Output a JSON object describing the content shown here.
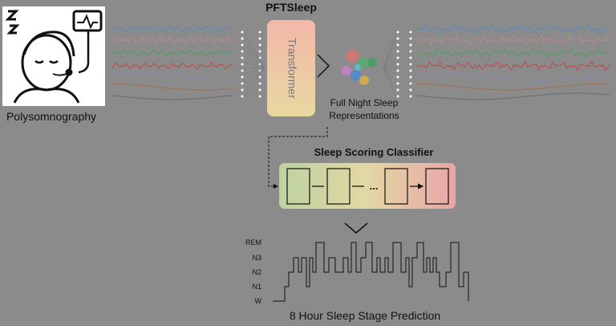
{
  "header": {
    "title": "PFTSleep"
  },
  "input": {
    "label": "Polysomnography"
  },
  "model": {
    "label": "Transformer"
  },
  "representations": {
    "label_lines": [
      "Full Night Sleep",
      "Representations"
    ]
  },
  "classifier": {
    "title": "Sleep Scoring Classifier",
    "ellipsis": "..."
  },
  "prediction": {
    "title": "8 Hour Sleep Stage Prediction",
    "stages": [
      "REM",
      "N3",
      "N2",
      "N1",
      "W"
    ]
  }
}
